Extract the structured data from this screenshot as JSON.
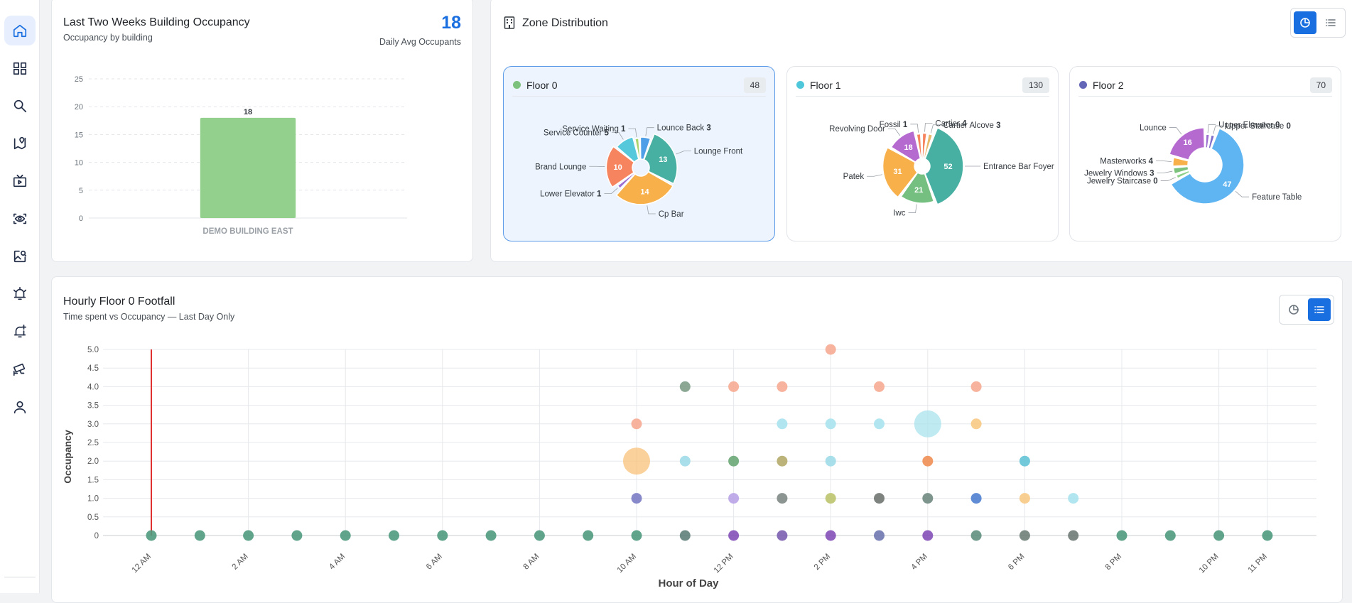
{
  "sidebar": {
    "items": [
      {
        "icon": "home-icon",
        "active": true
      },
      {
        "icon": "grid-icon"
      },
      {
        "icon": "search-icon"
      },
      {
        "icon": "map-pin-icon"
      },
      {
        "icon": "tv-icon"
      },
      {
        "icon": "eye-scan-icon"
      },
      {
        "icon": "image-search-icon"
      },
      {
        "icon": "alarm-icon"
      },
      {
        "icon": "alert-add-icon"
      },
      {
        "icon": "cctv-icon"
      },
      {
        "icon": "user-icon"
      }
    ]
  },
  "occupancy_card": {
    "title": "Last Two Weeks Building Occupancy",
    "subtitle": "Occupancy by building",
    "metric_value": "18",
    "metric_label": "Daily Avg Occupants"
  },
  "zone_card": {
    "title": "Zone Distribution",
    "floors": [
      {
        "name": "Floor 0",
        "count": "48",
        "color": "#7cc27c",
        "selected": true
      },
      {
        "name": "Floor 1",
        "count": "130",
        "color": "#4dc7d9"
      },
      {
        "name": "Floor 2",
        "count": "70",
        "color": "#6366b6"
      }
    ]
  },
  "footfall_card": {
    "title": "Hourly Floor 0 Footfall",
    "subtitle": "Time spent vs Occupancy — Last Day Only"
  },
  "chart_data": [
    {
      "type": "bar",
      "categories": [
        "DEMO BUILDING EAST"
      ],
      "values": [
        18
      ],
      "color": "#93d08e",
      "ylim": [
        0,
        25
      ],
      "yticks": [
        0,
        5,
        10,
        15,
        20,
        25
      ],
      "grid": true,
      "data_labels": true
    },
    {
      "type": "pie",
      "floor": "Floor 0",
      "slices": [
        {
          "label": "Lounge Front",
          "value": 13,
          "color": "#48b0a2"
        },
        {
          "label": "Cp Bar",
          "value": 14,
          "color": "#f7b04a"
        },
        {
          "label": "Lower Elevator",
          "value": 1,
          "color": "#9d6fd0"
        },
        {
          "label": "Brand Lounge",
          "value": 10,
          "color": "#f5845f"
        },
        {
          "label": "Service Counter",
          "value": 5,
          "color": "#55c8dc"
        },
        {
          "label": "Service Waiting",
          "value": 1,
          "color": "#a9d36b"
        },
        {
          "label": "Lounce Back",
          "value": 3,
          "color": "#4e9ee8"
        }
      ]
    },
    {
      "type": "pie",
      "floor": "Floor 1",
      "slices": [
        {
          "label": "Entrance Bar Foyer",
          "value": 52,
          "color": "#48b0a2"
        },
        {
          "label": "Iwc",
          "value": 21,
          "color": "#75c081"
        },
        {
          "label": "Patek",
          "value": 31,
          "color": "#f7b04a"
        },
        {
          "label": "Revolving Door",
          "value": 18,
          "color": "#b56ad0"
        },
        {
          "label": "Fossil",
          "value": 1,
          "color": "#f5845f"
        },
        {
          "label": "Cartier",
          "value": 4,
          "color": "#f5845f"
        },
        {
          "label": "Cartier Alcove",
          "value": 3,
          "color": "#e8b96a"
        }
      ]
    },
    {
      "type": "pie",
      "floor": "Floor 2",
      "slices": [
        {
          "label": "Feature Table",
          "value": 47,
          "color": "#5fb5f2"
        },
        {
          "label": "Jewelry Staircase",
          "value": 0,
          "color": "#8ed08a"
        },
        {
          "label": "Jewelry Windows",
          "value": 3,
          "color": "#7cc27c"
        },
        {
          "label": "Masterworks",
          "value": 4,
          "color": "#f7b04a"
        },
        {
          "label": "Lounce",
          "value": 16,
          "color": "#b56ad0"
        },
        {
          "label": "Upper Elevator",
          "value": 0,
          "color": "#9d6fd0"
        },
        {
          "label": "Upper Staircase",
          "value": 0,
          "color": "#7f6dc9"
        }
      ]
    },
    {
      "type": "scatter",
      "xlabel": "Hour of Day",
      "ylabel": "Occupancy",
      "ylim": [
        0,
        5
      ],
      "yticks": [
        0,
        0.5,
        1.0,
        1.5,
        2.0,
        2.5,
        3.0,
        3.5,
        4.0,
        4.5,
        5.0
      ],
      "ytick_labels": [
        "0",
        "0.5",
        "1.0",
        "1.5",
        "2.0",
        "2.5",
        "3.0",
        "3.5",
        "4.0",
        "4.5",
        "5.0"
      ],
      "xlim": [
        0,
        24
      ],
      "xticks": [
        {
          "x": 0,
          "label": "12 AM"
        },
        {
          "x": 2,
          "label": "2 AM"
        },
        {
          "x": 4,
          "label": "4 AM"
        },
        {
          "x": 6,
          "label": "6 AM"
        },
        {
          "x": 8,
          "label": "8 AM"
        },
        {
          "x": 10,
          "label": "10 AM"
        },
        {
          "x": 12,
          "label": "12 PM"
        },
        {
          "x": 14,
          "label": "2 PM"
        },
        {
          "x": 16,
          "label": "4 PM"
        },
        {
          "x": 18,
          "label": "6 PM"
        },
        {
          "x": 20,
          "label": "8 PM"
        },
        {
          "x": 22,
          "label": "10 PM"
        },
        {
          "x": 23,
          "label": "11 PM"
        }
      ],
      "grid": true,
      "current_time_marker": {
        "x": 0,
        "color": "#e03131"
      },
      "points": [
        {
          "x": 0,
          "y": 0,
          "color": "#4f9a7e"
        },
        {
          "x": 1,
          "y": 0,
          "color": "#4f9a7e"
        },
        {
          "x": 2,
          "y": 0,
          "color": "#4f9a7e"
        },
        {
          "x": 3,
          "y": 0,
          "color": "#4f9a7e"
        },
        {
          "x": 4,
          "y": 0,
          "color": "#4f9a7e"
        },
        {
          "x": 5,
          "y": 0,
          "color": "#4f9a7e"
        },
        {
          "x": 6,
          "y": 0,
          "color": "#4f9a7e"
        },
        {
          "x": 7,
          "y": 0,
          "color": "#4f9a7e"
        },
        {
          "x": 8,
          "y": 0,
          "color": "#4f9a7e"
        },
        {
          "x": 9,
          "y": 0,
          "color": "#4f9a7e"
        },
        {
          "x": 10,
          "y": 0,
          "color": "#4f9a7e"
        },
        {
          "x": 11,
          "y": 0,
          "color": "#5f7f7a"
        },
        {
          "x": 12,
          "y": 0,
          "color": "#8450b8"
        },
        {
          "x": 13,
          "y": 0,
          "color": "#7c5fb0"
        },
        {
          "x": 14,
          "y": 0,
          "color": "#8450b8"
        },
        {
          "x": 15,
          "y": 0,
          "color": "#6e77b0"
        },
        {
          "x": 16,
          "y": 0,
          "color": "#8450b8"
        },
        {
          "x": 17,
          "y": 0,
          "color": "#5f8f80"
        },
        {
          "x": 18,
          "y": 0,
          "color": "#6f7f78"
        },
        {
          "x": 19,
          "y": 0,
          "color": "#6f7a76"
        },
        {
          "x": 20,
          "y": 0,
          "color": "#4f9a7e"
        },
        {
          "x": 21,
          "y": 0,
          "color": "#4f9a7e"
        },
        {
          "x": 22,
          "y": 0,
          "color": "#4f9a7e"
        },
        {
          "x": 23,
          "y": 0,
          "color": "#4f9a7e"
        },
        {
          "x": 10,
          "y": 1.0,
          "color": "#7a7cc4"
        },
        {
          "x": 12,
          "y": 1.0,
          "color": "#b9a3e6"
        },
        {
          "x": 13,
          "y": 1.0,
          "color": "#808a86"
        },
        {
          "x": 14,
          "y": 1.0,
          "color": "#bcc46e"
        },
        {
          "x": 15,
          "y": 1.0,
          "color": "#707572"
        },
        {
          "x": 16,
          "y": 1.0,
          "color": "#6f8a80"
        },
        {
          "x": 17,
          "y": 1.0,
          "color": "#4f7fd0"
        },
        {
          "x": 18,
          "y": 1.0,
          "color": "#f8c985"
        },
        {
          "x": 19,
          "y": 1.0,
          "color": "#a9e3ee"
        },
        {
          "x": 10,
          "y": 2.0,
          "color": "#f8c27a",
          "size": "large"
        },
        {
          "x": 11,
          "y": 2.0,
          "color": "#a0dce8"
        },
        {
          "x": 12,
          "y": 2.0,
          "color": "#6aa877"
        },
        {
          "x": 13,
          "y": 2.0,
          "color": "#b5ab6c"
        },
        {
          "x": 14,
          "y": 2.0,
          "color": "#9fdbe8"
        },
        {
          "x": 16,
          "y": 2.0,
          "color": "#f08f55"
        },
        {
          "x": 18,
          "y": 2.0,
          "color": "#62c3d6"
        },
        {
          "x": 10,
          "y": 3.0,
          "color": "#f6ab94"
        },
        {
          "x": 13,
          "y": 3.0,
          "color": "#a9e3ee"
        },
        {
          "x": 14,
          "y": 3.0,
          "color": "#a9e3ee"
        },
        {
          "x": 15,
          "y": 3.0,
          "color": "#a9e3ee"
        },
        {
          "x": 16,
          "y": 3.0,
          "color": "#a9e3ee",
          "size": "large"
        },
        {
          "x": 17,
          "y": 3.0,
          "color": "#f8c985"
        },
        {
          "x": 11,
          "y": 4.0,
          "color": "#7f9f88"
        },
        {
          "x": 12,
          "y": 4.0,
          "color": "#f6ab94"
        },
        {
          "x": 13,
          "y": 4.0,
          "color": "#f6ab94"
        },
        {
          "x": 15,
          "y": 4.0,
          "color": "#f6ab94"
        },
        {
          "x": 17,
          "y": 4.0,
          "color": "#f6ab94"
        },
        {
          "x": 14,
          "y": 5.0,
          "color": "#f6ab94"
        }
      ]
    }
  ]
}
